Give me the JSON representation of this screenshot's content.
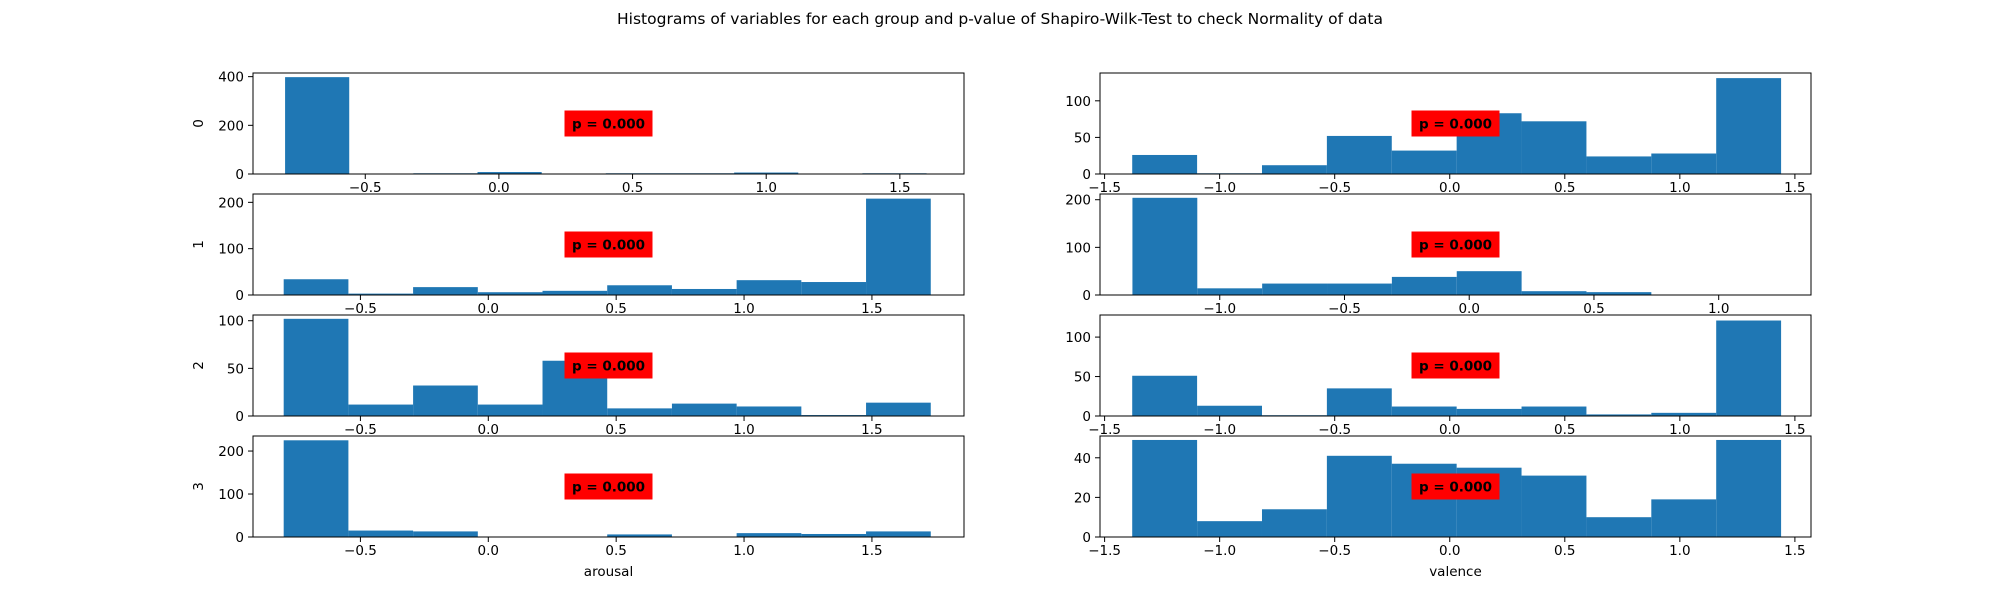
{
  "figure": {
    "title": "Histograms of variables for each group and p-value of Shapiro-Wilk-Test to check Normality of data"
  },
  "colors": {
    "bar": "#1f77b4",
    "annotation_bg": "#ff0000",
    "axis": "#000000"
  },
  "chart_data": [
    {
      "type": "bar",
      "variable": "arousal",
      "group_label": "0",
      "xlabel": "",
      "xlim": [
        -0.92,
        1.74
      ],
      "ylim": [
        0,
        415
      ],
      "xticks": [
        -0.5,
        0.0,
        0.5,
        1.0,
        1.5
      ],
      "xtick_labels": [
        "−0.5",
        "0.0",
        "0.5",
        "1.0",
        "1.5"
      ],
      "yticks": [
        0,
        200,
        400
      ],
      "ytick_labels": [
        "0",
        "200",
        "400"
      ],
      "bin_edges": [
        -0.8,
        -0.56,
        -0.32,
        -0.08,
        0.16,
        0.4,
        0.64,
        0.88,
        1.12,
        1.36,
        1.6
      ],
      "values": [
        398,
        2,
        3,
        8,
        1,
        3,
        3,
        6,
        2,
        3
      ],
      "annotation": "p = 0.000",
      "annotation_pos": [
        0.5,
        0.5
      ]
    },
    {
      "type": "bar",
      "variable": "valence",
      "group_label": "",
      "xlabel": "",
      "xlim": [
        -1.52,
        1.57
      ],
      "ylim": [
        0,
        138
      ],
      "xticks": [
        -1.5,
        -1.0,
        -0.5,
        0.0,
        0.5,
        1.0,
        1.5
      ],
      "xtick_labels": [
        "−1.5",
        "−1.0",
        "−0.5",
        "0.0",
        "0.5",
        "1.0",
        "1.5"
      ],
      "yticks": [
        0,
        50,
        100
      ],
      "ytick_labels": [
        "0",
        "50",
        "100"
      ],
      "bin_edges": [
        -1.38,
        -1.098,
        -0.816,
        -0.534,
        -0.252,
        0.03,
        0.312,
        0.594,
        0.876,
        1.158,
        1.44
      ],
      "values": [
        26,
        1,
        12,
        52,
        32,
        83,
        72,
        24,
        28,
        131
      ],
      "annotation": "p = 0.000",
      "annotation_pos": [
        0.5,
        0.5
      ]
    },
    {
      "type": "bar",
      "variable": "arousal",
      "group_label": "1",
      "xlabel": "",
      "xlim": [
        -0.92,
        1.86
      ],
      "ylim": [
        0,
        218
      ],
      "xticks": [
        -0.5,
        0.0,
        0.5,
        1.0,
        1.5
      ],
      "xtick_labels": [
        "−0.5",
        "0.0",
        "0.5",
        "1.0",
        "1.5"
      ],
      "yticks": [
        0,
        100,
        200
      ],
      "ytick_labels": [
        "0",
        "100",
        "200"
      ],
      "bin_edges": [
        -0.8,
        -0.547,
        -0.294,
        -0.041,
        0.212,
        0.465,
        0.718,
        0.971,
        1.224,
        1.477,
        1.73
      ],
      "values": [
        34,
        3,
        17,
        6,
        9,
        21,
        13,
        32,
        28,
        208
      ],
      "annotation": "p = 0.000",
      "annotation_pos": [
        0.5,
        0.5
      ]
    },
    {
      "type": "bar",
      "variable": "valence",
      "group_label": "",
      "xlabel": "",
      "xlim": [
        -1.48,
        1.37
      ],
      "ylim": [
        0,
        212
      ],
      "xticks": [
        -1.0,
        -0.5,
        0.0,
        0.5,
        1.0
      ],
      "xtick_labels": [
        "−1.0",
        "−0.5",
        "0.0",
        "0.5",
        "1.0"
      ],
      "yticks": [
        0,
        100,
        200
      ],
      "ytick_labels": [
        "0",
        "100",
        "200"
      ],
      "bin_edges": [
        -1.35,
        -1.09,
        -0.83,
        -0.57,
        -0.31,
        -0.05,
        0.21,
        0.47,
        0.73,
        0.99,
        1.25
      ],
      "values": [
        204,
        14,
        24,
        24,
        38,
        50,
        8,
        6,
        1,
        1
      ],
      "annotation": "p = 0.000",
      "annotation_pos": [
        0.5,
        0.5
      ]
    },
    {
      "type": "bar",
      "variable": "arousal",
      "group_label": "2",
      "xlabel": "",
      "xlim": [
        -0.92,
        1.86
      ],
      "ylim": [
        0,
        106
      ],
      "xticks": [
        -0.5,
        0.0,
        0.5,
        1.0,
        1.5
      ],
      "xtick_labels": [
        "−0.5",
        "0.0",
        "0.5",
        "1.0",
        "1.5"
      ],
      "yticks": [
        0,
        50,
        100
      ],
      "ytick_labels": [
        "0",
        "50",
        "100"
      ],
      "bin_edges": [
        -0.8,
        -0.547,
        -0.294,
        -0.041,
        0.212,
        0.465,
        0.718,
        0.971,
        1.224,
        1.477,
        1.73
      ],
      "values": [
        102,
        12,
        32,
        12,
        58,
        8,
        13,
        10,
        1,
        14
      ],
      "annotation": "p = 0.000",
      "annotation_pos": [
        0.5,
        0.5
      ]
    },
    {
      "type": "bar",
      "variable": "valence",
      "group_label": "",
      "xlabel": "",
      "xlim": [
        -1.52,
        1.57
      ],
      "ylim": [
        0,
        128
      ],
      "xticks": [
        -1.5,
        -1.0,
        -0.5,
        0.0,
        0.5,
        1.0,
        1.5
      ],
      "xtick_labels": [
        "−1.5",
        "−1.0",
        "−0.5",
        "0.0",
        "0.5",
        "1.0",
        "1.5"
      ],
      "yticks": [
        0,
        50,
        100
      ],
      "ytick_labels": [
        "0",
        "50",
        "100"
      ],
      "bin_edges": [
        -1.38,
        -1.098,
        -0.816,
        -0.534,
        -0.252,
        0.03,
        0.312,
        0.594,
        0.876,
        1.158,
        1.44
      ],
      "values": [
        51,
        13,
        1,
        35,
        12,
        9,
        12,
        2,
        4,
        121
      ],
      "annotation": "p = 0.000",
      "annotation_pos": [
        0.5,
        0.5
      ]
    },
    {
      "type": "bar",
      "variable": "arousal",
      "group_label": "3",
      "xlabel": "arousal",
      "xlim": [
        -0.92,
        1.86
      ],
      "ylim": [
        0,
        235
      ],
      "xticks": [
        -0.5,
        0.0,
        0.5,
        1.0,
        1.5
      ],
      "xtick_labels": [
        "−0.5",
        "0.0",
        "0.5",
        "1.0",
        "1.5"
      ],
      "yticks": [
        0,
        100,
        200
      ],
      "ytick_labels": [
        "0",
        "100",
        "200"
      ],
      "bin_edges": [
        -0.8,
        -0.547,
        -0.294,
        -0.041,
        0.212,
        0.465,
        0.718,
        0.971,
        1.224,
        1.477,
        1.73
      ],
      "values": [
        225,
        15,
        13,
        1,
        1,
        6,
        1,
        9,
        7,
        13
      ],
      "annotation": "p = 0.000",
      "annotation_pos": [
        0.5,
        0.5
      ]
    },
    {
      "type": "bar",
      "variable": "valence",
      "group_label": "",
      "xlabel": "valence",
      "xlim": [
        -1.52,
        1.57
      ],
      "ylim": [
        0,
        51
      ],
      "xticks": [
        -1.5,
        -1.0,
        -0.5,
        0.0,
        0.5,
        1.0,
        1.5
      ],
      "xtick_labels": [
        "−1.5",
        "−1.0",
        "−0.5",
        "0.0",
        "0.5",
        "1.0",
        "1.5"
      ],
      "yticks": [
        0,
        20,
        40
      ],
      "ytick_labels": [
        "0",
        "20",
        "40"
      ],
      "bin_edges": [
        -1.38,
        -1.098,
        -0.816,
        -0.534,
        -0.252,
        0.03,
        0.312,
        0.594,
        0.876,
        1.158,
        1.44
      ],
      "values": [
        49,
        8,
        14,
        41,
        37,
        35,
        31,
        10,
        19,
        49
      ],
      "annotation": "p = 0.000",
      "annotation_pos": [
        0.5,
        0.5
      ]
    }
  ]
}
